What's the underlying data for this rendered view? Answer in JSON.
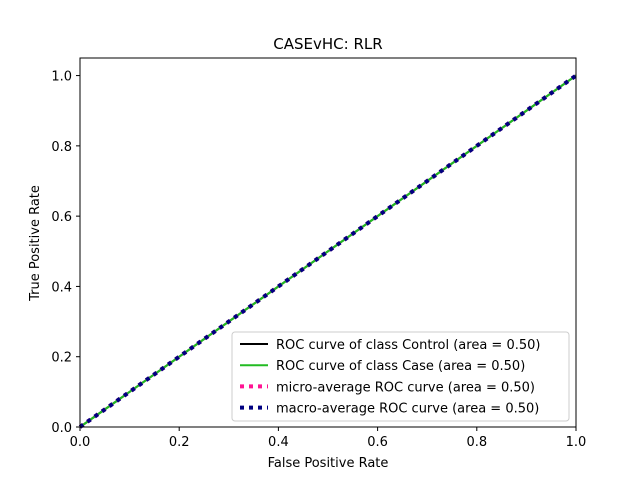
{
  "chart_data": {
    "type": "line",
    "title": "CASEvHC: RLR",
    "xlabel": "False Positive Rate",
    "ylabel": "True Positive Rate",
    "xlim": [
      0.0,
      1.0
    ],
    "ylim": [
      0.0,
      1.05
    ],
    "xticks": [
      "0.0",
      "0.2",
      "0.4",
      "0.6",
      "0.8",
      "1.0"
    ],
    "yticks": [
      "0.0",
      "0.2",
      "0.4",
      "0.6",
      "0.8",
      "1.0"
    ],
    "grid": false,
    "legend_position": "lower-right",
    "series": [
      {
        "name": "ROC curve of class  Control (area = 0.50)",
        "color": "#000000",
        "style": "solid",
        "x": [
          0.0,
          1.0
        ],
        "y": [
          0.0,
          1.0
        ]
      },
      {
        "name": "ROC curve of class Case (area = 0.50)",
        "color": "#22bb22",
        "style": "solid",
        "x": [
          0.0,
          1.0
        ],
        "y": [
          0.0,
          1.0
        ]
      },
      {
        "name": "micro-average ROC curve (area = 0.50)",
        "color": "#ff1493",
        "style": "dotted",
        "x": [
          0.0,
          1.0
        ],
        "y": [
          0.0,
          1.0
        ]
      },
      {
        "name": "macro-average ROC curve (area = 0.50)",
        "color": "#000080",
        "style": "dotted",
        "x": [
          0.0,
          1.0
        ],
        "y": [
          0.0,
          1.0
        ]
      }
    ]
  }
}
